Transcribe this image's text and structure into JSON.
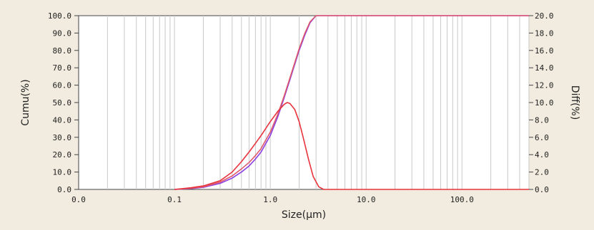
{
  "chart_data": {
    "type": "line",
    "title": "",
    "xlabel": "Size(μm)",
    "ylabel_left": "Cumu(%)",
    "ylabel_right": "Diff(%)",
    "x_scale": "log",
    "xlim": [
      0.01,
      500
    ],
    "ylim_left": [
      0,
      100
    ],
    "ylim_right": [
      0,
      20
    ],
    "x_tick_labels": [
      "0.0",
      "0.1",
      "1.0",
      "10.0",
      "100.0"
    ],
    "x_tick_values": [
      0.01,
      0.1,
      1,
      10,
      100
    ],
    "y_left_tick_labels": [
      "0.0",
      "10.0",
      "20.0",
      "30.0",
      "40.0",
      "50.0",
      "60.0",
      "70.0",
      "80.0",
      "90.0",
      "100.0"
    ],
    "y_right_tick_labels": [
      "0.0",
      "2.0",
      "4.0",
      "6.0",
      "8.0",
      "10.0",
      "12.0",
      "14.0",
      "16.0",
      "18.0",
      "20.0"
    ],
    "grid": true,
    "series": [
      {
        "axis": "left",
        "color": "#8a3fe0",
        "x": [
          0.1,
          0.15,
          0.2,
          0.3,
          0.4,
          0.5,
          0.6,
          0.7,
          0.8,
          1.0,
          1.2,
          1.4,
          1.6,
          1.8,
          2.0,
          2.3,
          2.6,
          3.0,
          500
        ],
        "y": [
          0.0,
          0.5,
          1.2,
          3.5,
          6.5,
          10.0,
          13.5,
          17.5,
          21.5,
          31.0,
          42.0,
          53.0,
          63.0,
          72.0,
          80.0,
          89.0,
          96.0,
          100.0,
          100.0
        ]
      },
      {
        "axis": "left",
        "color": "#e05a6e",
        "x": [
          0.1,
          0.15,
          0.2,
          0.3,
          0.4,
          0.5,
          0.6,
          0.7,
          0.8,
          1.0,
          1.2,
          1.4,
          1.6,
          1.8,
          2.0,
          2.3,
          2.6,
          3.0,
          500
        ],
        "y": [
          0.0,
          0.6,
          1.5,
          4.2,
          7.8,
          11.8,
          15.5,
          19.5,
          23.5,
          33.0,
          43.5,
          54.0,
          64.0,
          73.0,
          81.0,
          90.0,
          96.5,
          100.0,
          100.0
        ]
      },
      {
        "axis": "right",
        "color": "#e8333c",
        "x": [
          0.1,
          0.15,
          0.2,
          0.3,
          0.4,
          0.5,
          0.6,
          0.7,
          0.8,
          1.0,
          1.2,
          1.4,
          1.5,
          1.6,
          1.8,
          2.0,
          2.2,
          2.5,
          2.8,
          3.2,
          3.6,
          500
        ],
        "y": [
          0.0,
          0.2,
          0.4,
          1.0,
          2.0,
          3.2,
          4.3,
          5.3,
          6.2,
          7.8,
          9.0,
          9.8,
          10.0,
          9.9,
          9.2,
          7.8,
          6.0,
          3.5,
          1.5,
          0.3,
          0.0,
          0.0
        ]
      }
    ]
  }
}
